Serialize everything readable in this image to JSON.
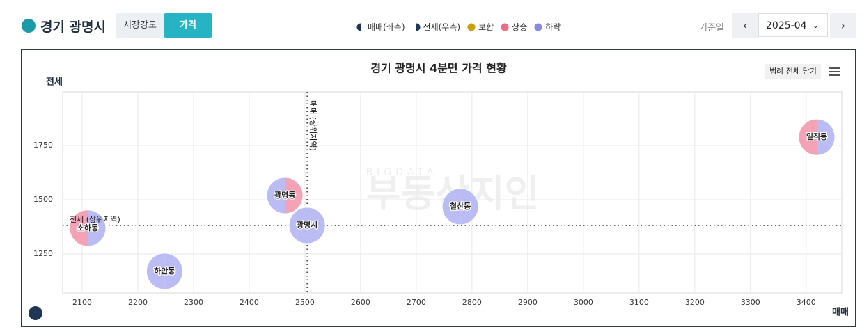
{
  "header": {
    "title": "경기 광명시",
    "tabs": [
      "시장강도",
      "가격"
    ],
    "active_tab": 1,
    "date_label": "기준일",
    "date": "2025-04"
  },
  "chart_data": {
    "type": "bubble",
    "title": "경기 광명시 4분면 가격 현황",
    "x_label": "매매",
    "y_label": "전세",
    "legend": [
      {
        "name": "매매(좌측)",
        "color": "#1f3654",
        "shape": "left"
      },
      {
        "name": "전세(우측)",
        "color": "#1f3654",
        "shape": "right"
      },
      {
        "name": "보합",
        "color": "#c9a10a",
        "shape": "circle"
      },
      {
        "name": "상승",
        "color": "#f06b8a",
        "shape": "circle"
      },
      {
        "name": "하락",
        "color": "#8a8ae6",
        "shape": "circle"
      }
    ],
    "legend_button": "범례 전체 닫기",
    "watermark": {
      "top": "BIGDATA",
      "main": "부동산지인"
    },
    "xlim": [
      2065,
      3464
    ],
    "ylim": [
      1070,
      1997
    ],
    "xticks": [
      2100,
      2200,
      2300,
      2400,
      2500,
      2600,
      2700,
      2800,
      2900,
      3000,
      3100,
      3200,
      3300,
      3400
    ],
    "yticks": [
      1250,
      1500,
      1750
    ],
    "grid": true,
    "points": {
      "labels": [
        "소하동",
        "하안동",
        "광명동",
        "광명시",
        "철산동",
        "일직동"
      ],
      "x": [
        2110,
        2248,
        2464,
        2504,
        2779,
        3419
      ],
      "y": [
        1369,
        1170,
        1519,
        1381,
        1468,
        1788
      ],
      "left_colors": [
        "#f4a3b6",
        "#bbbcf3",
        "#bbbcf3",
        "#bbbcf3",
        "#bbbcf3",
        "#f4a3b6"
      ],
      "right_colors": [
        "#bbbcf3",
        "#bbbcf3",
        "#f4a3b6",
        "#bbbcf3",
        "#bbbcf3",
        "#bbbcf3"
      ]
    },
    "vline": {
      "value": 2504,
      "label": "매매 (상위지역)"
    },
    "hline": {
      "value": 1381,
      "label": "전세 (상위지역)"
    }
  }
}
